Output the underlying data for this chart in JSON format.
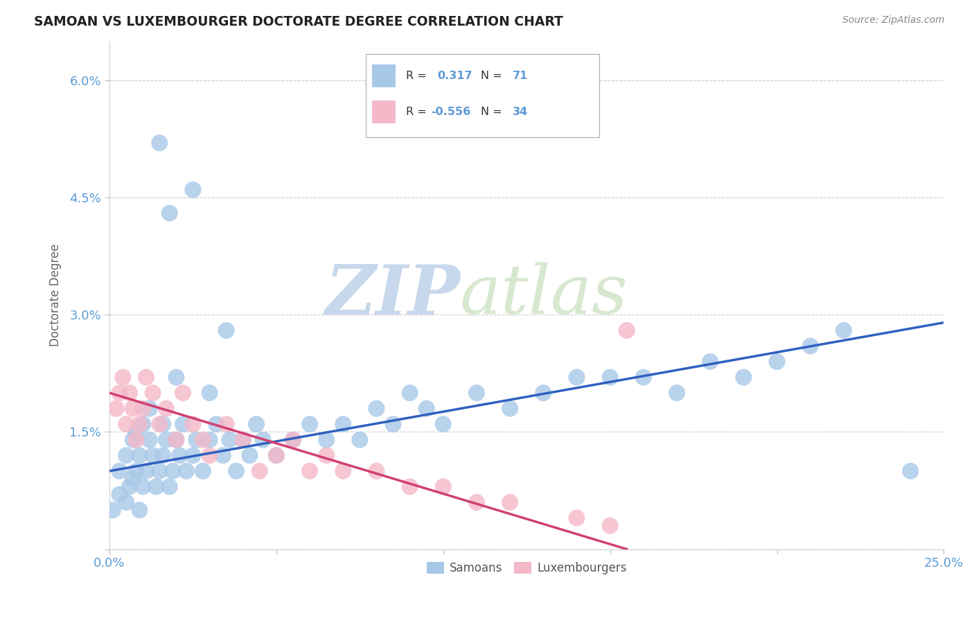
{
  "title": "SAMOAN VS LUXEMBOURGER DOCTORATE DEGREE CORRELATION CHART",
  "source": "Source: ZipAtlas.com",
  "ylabel": "Doctorate Degree",
  "xmin": 0.0,
  "xmax": 0.25,
  "ymin": 0.0,
  "ymax": 0.065,
  "yticks": [
    0.0,
    0.015,
    0.03,
    0.045,
    0.06
  ],
  "ytick_labels": [
    "",
    "1.5%",
    "3.0%",
    "4.5%",
    "6.0%"
  ],
  "xticks": [
    0.0,
    0.05,
    0.1,
    0.15,
    0.2,
    0.25
  ],
  "legend_R1": "0.317",
  "legend_N1": "71",
  "legend_R2": "-0.556",
  "legend_N2": "34",
  "blue_color": "#A8C8E8",
  "pink_color": "#F4B8C8",
  "blue_line_color": "#3060C0",
  "pink_line_color": "#D04070",
  "background_color": "#FFFFFF",
  "grid_color": "#CCCCCC",
  "watermark_zip": "ZIP",
  "watermark_atlas": "atlas",
  "blue_scatter_x": [
    0.003,
    0.005,
    0.006,
    0.007,
    0.008,
    0.008,
    0.009,
    0.01,
    0.01,
    0.011,
    0.012,
    0.013,
    0.014,
    0.015,
    0.016,
    0.016,
    0.017,
    0.018,
    0.019,
    0.02,
    0.021,
    0.022,
    0.023,
    0.025,
    0.026,
    0.028,
    0.03,
    0.032,
    0.034,
    0.036,
    0.038,
    0.04,
    0.042,
    0.044,
    0.046,
    0.05,
    0.055,
    0.06,
    0.065,
    0.07,
    0.075,
    0.08,
    0.085,
    0.09,
    0.095,
    0.1,
    0.11,
    0.12,
    0.13,
    0.14,
    0.15,
    0.16,
    0.17,
    0.18,
    0.19,
    0.2,
    0.21,
    0.22,
    0.001,
    0.003,
    0.005,
    0.007,
    0.009,
    0.012,
    0.015,
    0.018,
    0.02,
    0.025,
    0.03,
    0.035,
    0.24
  ],
  "blue_scatter_y": [
    0.01,
    0.012,
    0.008,
    0.014,
    0.01,
    0.015,
    0.012,
    0.008,
    0.016,
    0.01,
    0.014,
    0.012,
    0.008,
    0.01,
    0.012,
    0.016,
    0.014,
    0.008,
    0.01,
    0.014,
    0.012,
    0.016,
    0.01,
    0.012,
    0.014,
    0.01,
    0.014,
    0.016,
    0.012,
    0.014,
    0.01,
    0.014,
    0.012,
    0.016,
    0.014,
    0.012,
    0.014,
    0.016,
    0.014,
    0.016,
    0.014,
    0.018,
    0.016,
    0.02,
    0.018,
    0.016,
    0.02,
    0.018,
    0.02,
    0.022,
    0.022,
    0.022,
    0.02,
    0.024,
    0.022,
    0.024,
    0.026,
    0.028,
    0.005,
    0.007,
    0.006,
    0.009,
    0.005,
    0.018,
    0.052,
    0.043,
    0.022,
    0.046,
    0.02,
    0.028,
    0.01
  ],
  "pink_scatter_x": [
    0.002,
    0.003,
    0.004,
    0.005,
    0.006,
    0.007,
    0.008,
    0.009,
    0.01,
    0.011,
    0.013,
    0.015,
    0.017,
    0.02,
    0.022,
    0.025,
    0.028,
    0.03,
    0.035,
    0.04,
    0.045,
    0.05,
    0.055,
    0.06,
    0.065,
    0.07,
    0.08,
    0.09,
    0.1,
    0.11,
    0.12,
    0.14,
    0.15,
    0.155
  ],
  "pink_scatter_y": [
    0.018,
    0.02,
    0.022,
    0.016,
    0.02,
    0.018,
    0.014,
    0.016,
    0.018,
    0.022,
    0.02,
    0.016,
    0.018,
    0.014,
    0.02,
    0.016,
    0.014,
    0.012,
    0.016,
    0.014,
    0.01,
    0.012,
    0.014,
    0.01,
    0.012,
    0.01,
    0.01,
    0.008,
    0.008,
    0.006,
    0.006,
    0.004,
    0.003,
    0.028
  ],
  "blue_line_x": [
    0.0,
    0.25
  ],
  "blue_line_y": [
    0.01,
    0.029
  ],
  "pink_line_x": [
    0.0,
    0.155
  ],
  "pink_line_y": [
    0.02,
    0.0
  ]
}
